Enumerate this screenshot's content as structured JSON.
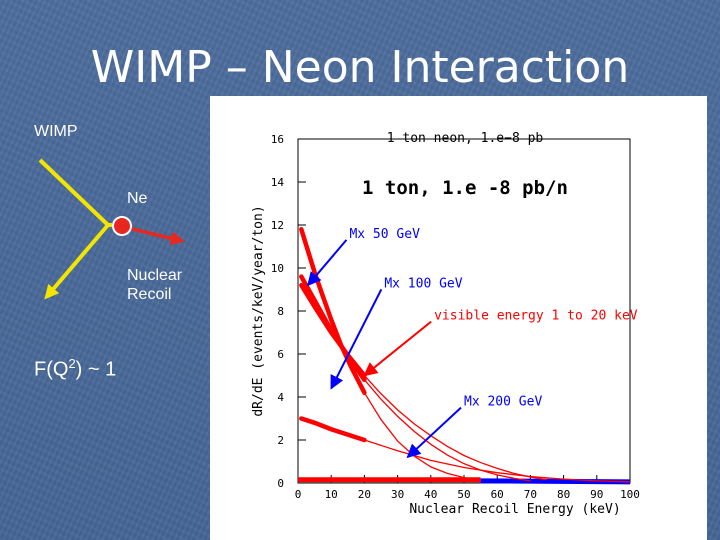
{
  "slide": {
    "title": "WIMP – Neon Interaction"
  },
  "diagram": {
    "incoming_label": "WIMP",
    "target_label": "Ne",
    "recoil_label": "Nuclear Recoil",
    "form_factor_base": "F(Q",
    "form_factor_exp": "2",
    "form_factor_rest": ") ~ 1",
    "colors": {
      "lines": "#f2e600",
      "nucleus": "#e8281e",
      "recoil_arrow": "#e8281e"
    }
  },
  "chart_data": {
    "type": "line",
    "title": "1 ton neon, 1.e−8 pb",
    "overlay_title": "1 ton, 1.e -8 pb/n",
    "xlabel": "Nuclear Recoil Energy (keV)",
    "ylabel": "dR/dE (events/keV/year/ton)",
    "xlim": [
      0,
      100
    ],
    "ylim": [
      0,
      16
    ],
    "xticks": [
      0,
      10,
      20,
      30,
      40,
      50,
      60,
      70,
      80,
      90,
      100
    ],
    "yticks": [
      0,
      2,
      4,
      6,
      8,
      10,
      12,
      14,
      16
    ],
    "grid": false,
    "series": [
      {
        "name": "Mx 50 GeV",
        "color": "#ff0000",
        "x": [
          1,
          3,
          5,
          7,
          10,
          13,
          16,
          20,
          25,
          30,
          35,
          40,
          45,
          50,
          55
        ],
        "y": [
          11.8,
          10.8,
          9.8,
          8.9,
          7.6,
          6.4,
          5.4,
          4.2,
          2.95,
          1.95,
          1.25,
          0.75,
          0.45,
          0.25,
          0.12
        ],
        "highlight": [
          1,
          20
        ]
      },
      {
        "name": "Mx 100 GeV",
        "color": "#ff0000",
        "x": [
          1,
          5,
          10,
          15,
          20,
          25,
          30,
          35,
          40,
          45,
          50,
          55,
          60,
          65,
          70
        ],
        "y": [
          9.6,
          8.5,
          7.1,
          5.9,
          4.8,
          3.9,
          3.1,
          2.4,
          1.8,
          1.3,
          0.9,
          0.6,
          0.38,
          0.22,
          0.1
        ],
        "highlight": [
          1,
          20
        ]
      },
      {
        "name": "Mx 200 GeV",
        "color": "#ff0000",
        "x": [
          1,
          5,
          10,
          20,
          30,
          40,
          50,
          60,
          70,
          80,
          90,
          100
        ],
        "y": [
          3.0,
          2.8,
          2.5,
          2.0,
          1.5,
          1.05,
          0.72,
          0.48,
          0.3,
          0.18,
          0.1,
          0.05
        ],
        "highlight": [
          1,
          20
        ]
      },
      {
        "name": "",
        "color": "#ff0000",
        "x": [
          1,
          5,
          10,
          15,
          20,
          25,
          30,
          35,
          40,
          45,
          50,
          55,
          60,
          65,
          70,
          75
        ],
        "y": [
          9.2,
          8.2,
          7.0,
          5.95,
          5.0,
          4.15,
          3.4,
          2.75,
          2.2,
          1.7,
          1.28,
          0.95,
          0.68,
          0.45,
          0.28,
          0.15
        ],
        "highlight": [
          1,
          20
        ]
      }
    ],
    "threshold_band": {
      "x": [
        0,
        55
      ],
      "color": "#ff0000",
      "tail_x": [
        55,
        100
      ],
      "tail_color": "#0000ff"
    },
    "annotations": [
      {
        "text": "Mx 50 GeV",
        "color": "#0000ff",
        "x": 15.5,
        "y": 11.4,
        "arrow_to": [
          3,
          9.2
        ]
      },
      {
        "text": "Mx 100 GeV",
        "color": "#0000ff",
        "x": 26,
        "y": 9.1,
        "arrow_to": [
          10,
          4.4
        ]
      },
      {
        "text": "visible energy 1 to 20 keV",
        "color": "#ff0000",
        "x": 41,
        "y": 7.6,
        "arrow_to": [
          20,
          5.0
        ]
      },
      {
        "text": "Mx 200 GeV",
        "color": "#0000ff",
        "x": 50,
        "y": 3.6,
        "arrow_to": [
          33,
          1.2
        ]
      }
    ]
  }
}
